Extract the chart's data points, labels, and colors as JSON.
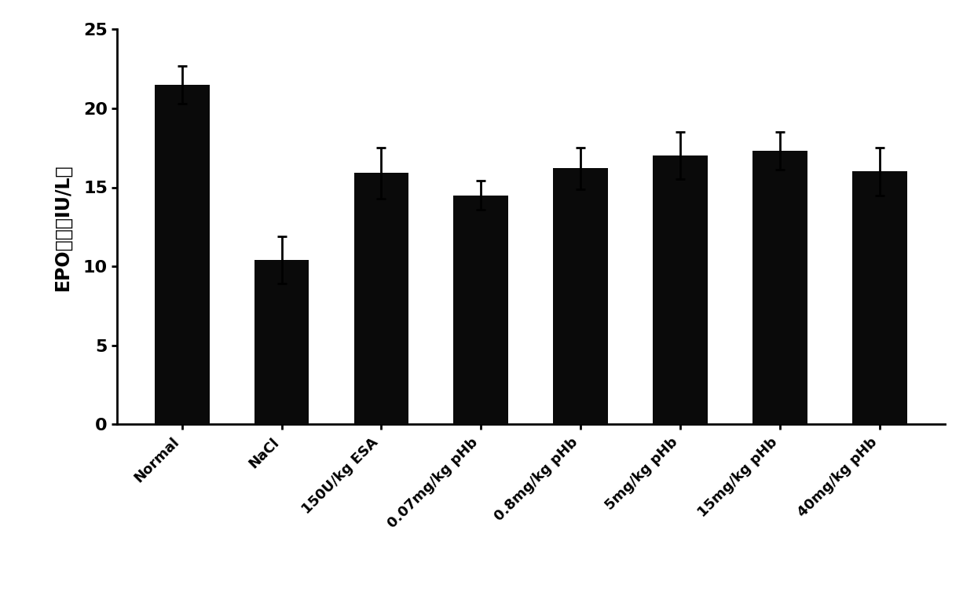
{
  "categories": [
    "Normal",
    "NaCl",
    "150U/kg ESA",
    "0.07mg/kg pHb",
    "0.8mg/kg pHb",
    "5mg/kg pHb",
    "15mg/kg pHb",
    "40mg/kg pHb"
  ],
  "values": [
    21.5,
    10.4,
    15.9,
    14.5,
    16.2,
    17.0,
    17.3,
    16.0
  ],
  "errors": [
    1.2,
    1.5,
    1.6,
    0.9,
    1.3,
    1.5,
    1.2,
    1.5
  ],
  "bar_color": "#0a0a0a",
  "ylabel": "EPO浓度（IU/L）",
  "ylim": [
    0,
    25
  ],
  "yticks": [
    0,
    5,
    10,
    15,
    20,
    25
  ],
  "background_color": "#ffffff",
  "ylabel_fontsize": 17,
  "tick_fontsize": 16,
  "xtick_fontsize": 13,
  "bar_width": 0.55,
  "capsize": 4
}
